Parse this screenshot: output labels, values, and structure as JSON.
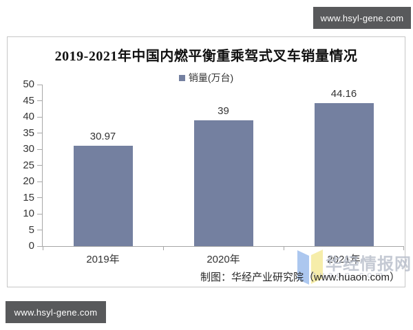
{
  "badges": {
    "top_right_label": "www.hsyl-gene.com",
    "bottom_left_label": "www.hsyl-gene.com",
    "background": "#58595b",
    "text_color": "#ffffff"
  },
  "chart": {
    "title": "2019-2021年中国内燃平衡重乘驾式叉车销量情况",
    "legend_label": "销量(万台)",
    "attribution": "制图：华经产业研究院（www.huaon.com）",
    "axis_color": "#a6a6a6",
    "border_color": "#c6c6c6"
  },
  "chart_data": {
    "type": "bar",
    "title": "2019-2021年中国内燃平衡重乘驾式叉车销量情况",
    "categories": [
      "2019年",
      "2020年",
      "2021年"
    ],
    "series": [
      {
        "name": "销量(万台)",
        "values": [
          30.97,
          39,
          44.16
        ]
      }
    ],
    "data_labels": [
      "30.97",
      "39",
      "44.16"
    ],
    "bar_color": "#7480a0",
    "ylim": [
      0,
      50
    ],
    "yticks": [
      0,
      5,
      10,
      15,
      20,
      25,
      30,
      35,
      40,
      45,
      50
    ],
    "grid": false,
    "legend_position": "top-center",
    "xlabel": "",
    "ylabel": ""
  },
  "watermark": {
    "name": "华经情报网",
    "site": "huaon.com",
    "logo_left_color": "#a8c5ef",
    "logo_right_color": "#f6eda6"
  }
}
